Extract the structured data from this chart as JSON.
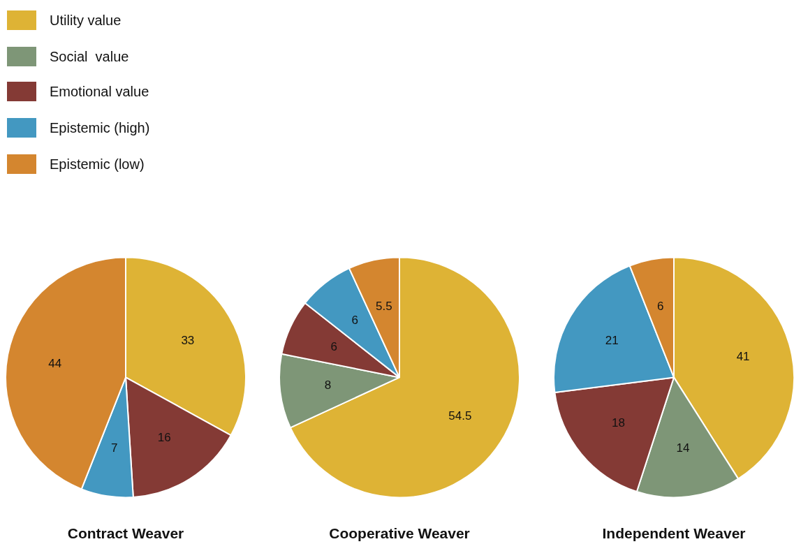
{
  "chart_data": [
    {
      "type": "pie",
      "title": "Contract Weaver",
      "categories": [
        "Utility value",
        "Social  value",
        "Emotional value",
        "Epistemic (high)",
        "Epistemic (low)"
      ],
      "values": [
        33,
        null,
        16,
        7,
        44
      ],
      "colors": [
        "#deb335",
        "#7e9677",
        "#843a35",
        "#4398c1",
        "#d4862f"
      ],
      "data_labels": true,
      "legend": "top left"
    },
    {
      "type": "pie",
      "title": "Cooperative Weaver",
      "categories": [
        null,
        null,
        null,
        null,
        null
      ],
      "values": [
        54.5,
        8,
        6,
        6,
        5.5
      ],
      "colors": [
        "#deb335",
        "#7e9677",
        "#843a35",
        "#4398c1",
        "#d4862f"
      ],
      "data_labels": true
    },
    {
      "type": "pie",
      "title": "Independent Weaver",
      "categories": [
        null,
        null,
        null,
        null,
        null
      ],
      "values": [
        41,
        14,
        18,
        21,
        6
      ],
      "colors": [
        "#deb335",
        "#7e9677",
        "#843a35",
        "#4398c1",
        "#d4862f"
      ],
      "data_labels": true
    }
  ]
}
